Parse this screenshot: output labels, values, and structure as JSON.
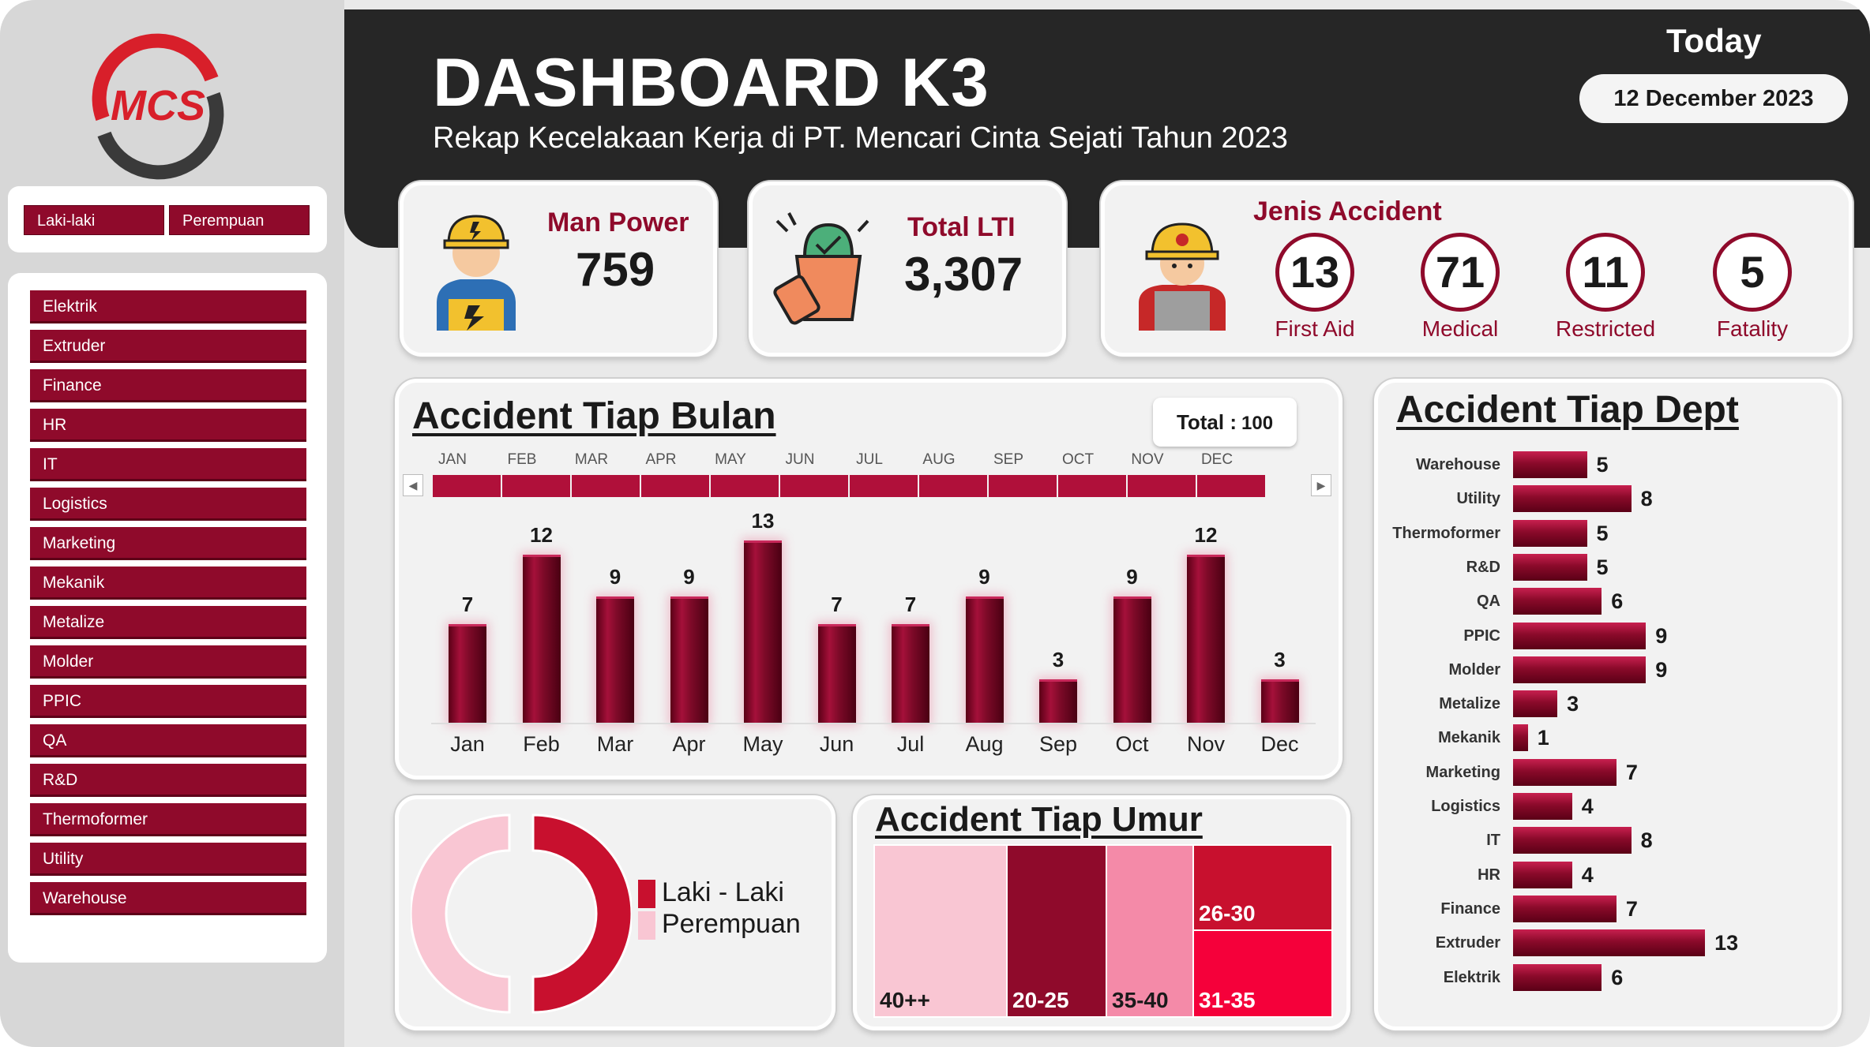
{
  "header": {
    "title": "DASHBOARD K3",
    "subtitle": "Rekap Kecelakaan Kerja di PT. Mencari Cinta Sejati Tahun 2023",
    "today_label": "Today",
    "date": "12 December 2023"
  },
  "logo": {
    "text": "MCS",
    "icon": "mcs-logo"
  },
  "gender_slicer": [
    "Laki-laki",
    "Perempuan"
  ],
  "dept_slicer": [
    "Elektrik",
    "Extruder",
    "Finance",
    "HR",
    "IT",
    "Logistics",
    "Marketing",
    "Mekanik",
    "Metalize",
    "Molder",
    "PPIC",
    "QA",
    "R&D",
    "Thermoformer",
    "Utility",
    "Warehouse"
  ],
  "kpi": {
    "man_power": {
      "label": "Man Power",
      "value": "759",
      "icon": "worker-icon"
    },
    "total_lti": {
      "label": "Total LTI",
      "value": "3,307",
      "icon": "clipboard-plant-icon"
    }
  },
  "jenis_accident": {
    "title": "Jenis Accident",
    "icon": "firefighter-icon",
    "items": [
      {
        "value": "13",
        "label": "First Aid"
      },
      {
        "value": "71",
        "label": "Medical"
      },
      {
        "value": "11",
        "label": "Restricted"
      },
      {
        "value": "5",
        "label": "Fatality"
      }
    ]
  },
  "monthly": {
    "title": "Accident Tiap Bulan",
    "total_label": "Total :",
    "total_value": "100",
    "timeline_months": [
      "JAN",
      "FEB",
      "MAR",
      "APR",
      "MAY",
      "JUN",
      "JUL",
      "AUG",
      "SEP",
      "OCT",
      "NOV",
      "DEC"
    ]
  },
  "dept_chart": {
    "title": "Accident Tiap Dept"
  },
  "age_chart": {
    "title": "Accident Tiap Umur"
  },
  "gender_chart": {
    "legend": [
      "Laki - Laki",
      "Perempuan"
    ]
  },
  "colors": {
    "primary": "#8f0a2b",
    "accent": "#c8204f",
    "light_pink": "#f9c6d3",
    "header": "#262626"
  },
  "chart_data": [
    {
      "type": "bar",
      "title": "Accident Tiap Bulan",
      "categories": [
        "Jan",
        "Feb",
        "Mar",
        "Apr",
        "May",
        "Jun",
        "Jul",
        "Aug",
        "Sep",
        "Oct",
        "Nov",
        "Dec"
      ],
      "values": [
        7,
        12,
        9,
        9,
        13,
        7,
        7,
        9,
        3,
        9,
        12,
        3
      ],
      "ylim": [
        0,
        14
      ],
      "grid": false
    },
    {
      "type": "bar",
      "orientation": "horizontal",
      "title": "Accident Tiap Dept",
      "categories": [
        "Warehouse",
        "Utility",
        "Thermoformer",
        "R&D",
        "QA",
        "PPIC",
        "Molder",
        "Metalize",
        "Mekanik",
        "Marketing",
        "Logistics",
        "IT",
        "HR",
        "Finance",
        "Extruder",
        "Elektrik"
      ],
      "values": [
        5,
        8,
        5,
        5,
        6,
        9,
        9,
        3,
        1,
        7,
        4,
        8,
        4,
        7,
        13,
        6
      ],
      "xlim": [
        0,
        14
      ]
    },
    {
      "type": "pie",
      "variant": "donut",
      "categories": [
        "Laki - Laki",
        "Perempuan"
      ],
      "values": [
        50,
        50
      ],
      "legend": "right"
    },
    {
      "type": "treemap",
      "title": "Accident Tiap Umur",
      "categories": [
        "40++",
        "20-25",
        "35-40",
        "26-30",
        "31-35"
      ]
    }
  ]
}
